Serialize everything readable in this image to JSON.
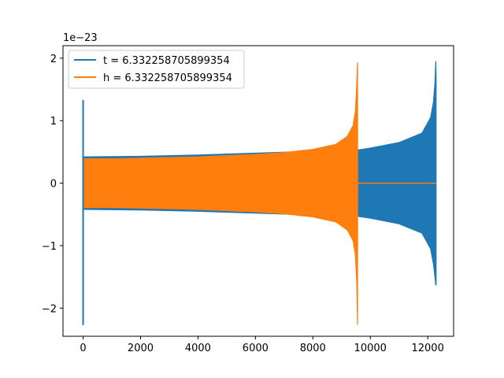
{
  "chart_data": {
    "type": "line",
    "title": "",
    "xlabel": "",
    "ylabel": "",
    "y_offset_label": "1e−23",
    "xlim": [
      -700,
      12900
    ],
    "ylim": [
      -2.45,
      2.2
    ],
    "x_ticks": [
      0,
      2000,
      4000,
      6000,
      8000,
      10000,
      12000
    ],
    "x_tick_labels": [
      "0",
      "2000",
      "4000",
      "6000",
      "8000",
      "10000",
      "12000"
    ],
    "y_ticks": [
      -2,
      -1,
      0,
      1,
      2
    ],
    "y_tick_labels": [
      "−2",
      "−1",
      "0",
      "1",
      "2"
    ],
    "grid": false,
    "legend_position": "top-left",
    "series": [
      {
        "name": "t = 6.332258705899354",
        "color": "#1f77b4",
        "description_points": {
          "x": [
            0,
            0,
            0,
            30,
            60,
            2000,
            4000,
            6000,
            8000,
            9000,
            9560,
            10000,
            11000,
            11800,
            12100,
            12200,
            12250,
            12280,
            12290
          ],
          "upper": [
            1.33,
            0.2,
            0.41,
            0.42,
            0.42,
            0.43,
            0.45,
            0.48,
            0.51,
            0.52,
            0.53,
            0.56,
            0.65,
            0.8,
            1.05,
            1.3,
            1.6,
            1.95,
            1.7
          ],
          "lower": [
            -2.27,
            -0.6,
            -0.41,
            -0.42,
            -0.42,
            -0.43,
            -0.45,
            -0.48,
            -0.51,
            -0.52,
            -0.53,
            -0.56,
            -0.65,
            -0.8,
            -1.05,
            -1.3,
            -1.5,
            -1.63,
            -1.63
          ]
        }
      },
      {
        "name": "h = 6.332258705899354",
        "color": "#ff7f0e",
        "description_points": {
          "x": [
            0,
            20,
            1000,
            2000,
            4000,
            6000,
            7000,
            8000,
            8800,
            9200,
            9400,
            9480,
            9530,
            9555,
            9560
          ],
          "upper": [
            0.2,
            0.39,
            0.39,
            0.4,
            0.42,
            0.46,
            0.49,
            0.54,
            0.62,
            0.75,
            0.92,
            1.15,
            1.6,
            1.93,
            0.0
          ],
          "lower": [
            -0.55,
            -0.39,
            -0.39,
            -0.4,
            -0.42,
            -0.46,
            -0.49,
            -0.54,
            -0.62,
            -0.75,
            -0.92,
            -1.15,
            -1.6,
            -2.27,
            0.0
          ]
        },
        "flat_after": {
          "x_start": 9560,
          "x_end": 12290,
          "y": 0.0
        }
      }
    ]
  }
}
